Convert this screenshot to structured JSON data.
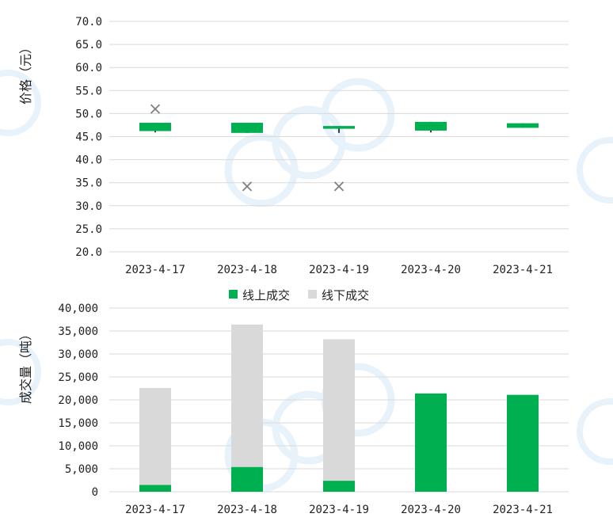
{
  "chart_data": [
    {
      "type": "candlestick",
      "ylabel": "价格（元）",
      "ylim": [
        20.0,
        70.0
      ],
      "ytick_step": 5.0,
      "yticks": [
        "20.0",
        "25.0",
        "30.0",
        "35.0",
        "40.0",
        "45.0",
        "50.0",
        "55.0",
        "60.0",
        "65.0",
        "70.0"
      ],
      "categories": [
        "2023-4-17",
        "2023-4-18",
        "2023-4-19",
        "2023-4-20",
        "2023-4-21"
      ],
      "colors": {
        "body": "#00b050",
        "marker": "#7f7f7f",
        "grid": "#d9d9d9"
      },
      "candles": [
        {
          "open": 46.2,
          "close": 48.0,
          "high": 48.0,
          "low": 45.9
        },
        {
          "open": 45.8,
          "close": 48.0,
          "high": 48.0,
          "low": 45.8
        },
        {
          "open": 46.7,
          "close": 47.3,
          "high": 47.3,
          "low": 45.8
        },
        {
          "open": 46.3,
          "close": 48.2,
          "high": 48.2,
          "low": 45.9
        },
        {
          "open": 46.9,
          "close": 47.9,
          "high": 47.9,
          "low": 46.9
        }
      ],
      "offline_price_markers": [
        {
          "category": "2023-4-17",
          "value": 51.0
        },
        {
          "category": "2023-4-18",
          "value": 34.2
        },
        {
          "category": "2023-4-19",
          "value": 34.2
        }
      ]
    },
    {
      "type": "stacked-bar",
      "ylabel": "成交量（吨）",
      "ylim": [
        0,
        40000
      ],
      "ytick_step": 5000,
      "yticks": [
        "0",
        "5,000",
        "10,000",
        "15,000",
        "20,000",
        "25,000",
        "30,000",
        "35,000",
        "40,000"
      ],
      "categories": [
        "2023-4-17",
        "2023-4-18",
        "2023-4-19",
        "2023-4-20",
        "2023-4-21"
      ],
      "legend_position": "top-center",
      "series": [
        {
          "name": "线上成交",
          "color": "#00b050",
          "values": [
            1500,
            5400,
            2400,
            21400,
            21100
          ]
        },
        {
          "name": "线下成交",
          "color": "#d9d9d9",
          "values": [
            21100,
            31000,
            30800,
            0,
            0
          ]
        }
      ]
    }
  ]
}
